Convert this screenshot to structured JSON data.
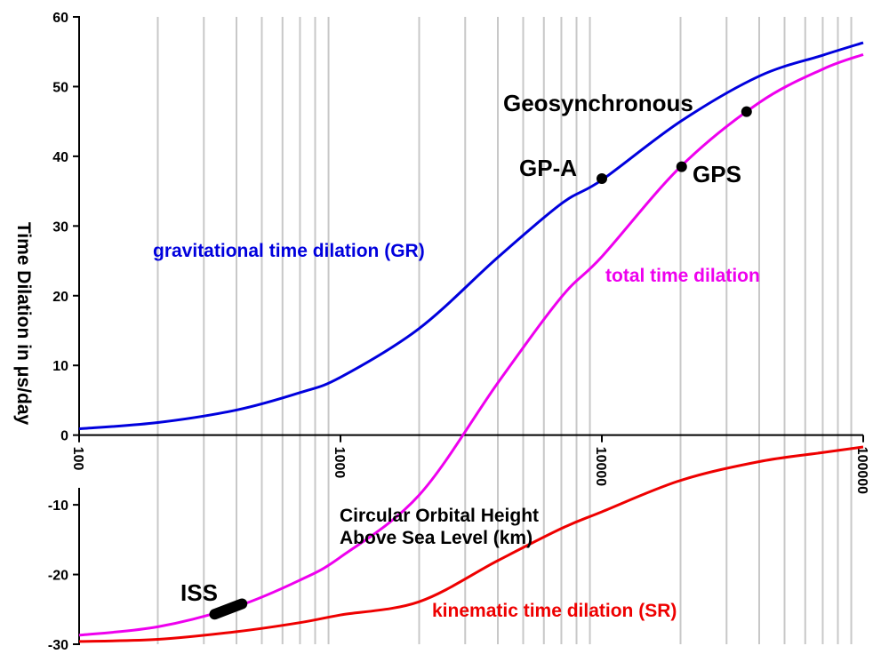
{
  "chart_data": {
    "type": "line",
    "xscale": "log",
    "xlim": [
      100,
      100000
    ],
    "ylim": [
      -30,
      60
    ],
    "grid": true,
    "ylabel": "Time Dilation in μs/day",
    "xlabel_line1": "Circular Orbital Height",
    "xlabel_line2": "Above Sea Level (km)",
    "x_ticks": [
      "100",
      "1000",
      "10000",
      "100000"
    ],
    "y_ticks": [
      "60",
      "50",
      "40",
      "30",
      "20",
      "10",
      "0",
      "-10",
      "-20",
      "-30"
    ],
    "series": [
      {
        "name": "gravitational time dilation (GR)",
        "color": "#0000dd",
        "x": [
          100,
          200,
          400,
          700,
          1000,
          2000,
          4000,
          7000,
          10000,
          20000,
          40000,
          70000,
          100000
        ],
        "y": [
          0.9,
          1.8,
          3.6,
          6.1,
          8.3,
          15.3,
          25.5,
          33.2,
          36.6,
          45.0,
          51.5,
          54.5,
          56.3
        ]
      },
      {
        "name": "total time dilation",
        "color": "#ee00ee",
        "x": [
          100,
          200,
          400,
          700,
          1000,
          2000,
          4000,
          7000,
          10000,
          20000,
          40000,
          70000,
          100000
        ],
        "y": [
          -28.7,
          -27.5,
          -24.6,
          -20.8,
          -17.5,
          -8.6,
          7.5,
          19.8,
          25.6,
          38.5,
          47.7,
          52.5,
          54.6
        ]
      },
      {
        "name": "kinematic time dilation (SR)",
        "color": "#ee0000",
        "x": [
          100,
          200,
          400,
          700,
          1000,
          2000,
          4000,
          7000,
          10000,
          20000,
          40000,
          70000,
          100000
        ],
        "y": [
          -29.6,
          -29.3,
          -28.2,
          -26.9,
          -25.8,
          -23.9,
          -18.0,
          -13.4,
          -11.0,
          -6.5,
          -3.8,
          -2.5,
          -1.7
        ]
      }
    ],
    "points": [
      {
        "label": "GP-A",
        "x": 10000,
        "y": 36.8
      },
      {
        "label": "GPS",
        "x": 20200,
        "y": 38.5
      },
      {
        "label": "Geosynchronous",
        "x": 35786,
        "y": 46.4
      }
    ],
    "segment": {
      "label": "ISS",
      "x": [
        330,
        420
      ],
      "y": [
        -25.7,
        -24.2
      ]
    }
  }
}
